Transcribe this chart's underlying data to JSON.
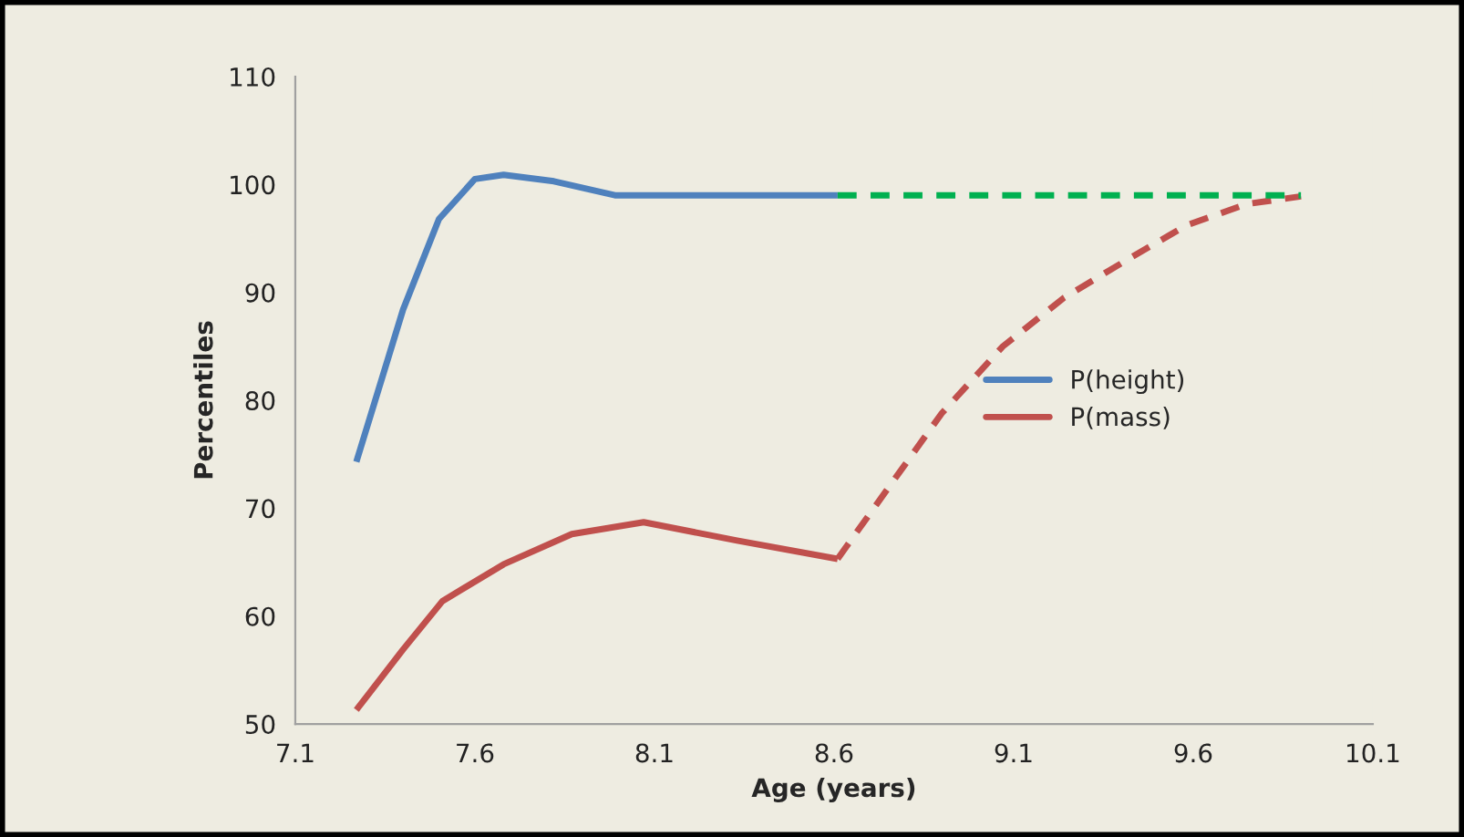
{
  "chart_data": {
    "type": "line",
    "xlabel": "Age (years)",
    "ylabel": "Percentiles",
    "xlim": [
      7.1,
      10.1
    ],
    "xticks": [
      7.1,
      7.6,
      8.1,
      8.6,
      9.1,
      9.6,
      10.1
    ],
    "ylim": [
      50,
      110
    ],
    "yticks": [
      50,
      60,
      70,
      80,
      90,
      100,
      110
    ],
    "grid": false,
    "legend": "right",
    "marker": "none",
    "series": [
      {
        "name": "P(height)",
        "color": "#4f81bd",
        "line_style": "solid",
        "x": [
          7.27,
          7.4,
          7.5,
          7.6,
          7.68,
          7.82,
          7.99,
          8.61
        ],
        "values": [
          74.3,
          88.4,
          96.8,
          100.5,
          100.9,
          100.3,
          99.0,
          99.0
        ]
      },
      {
        "name": "P(mass)",
        "color": "#c0504d",
        "line_style": "solid",
        "x": [
          7.27,
          7.4,
          7.51,
          7.68,
          7.87,
          8.07,
          8.33,
          8.61
        ],
        "values": [
          51.3,
          56.9,
          61.4,
          64.8,
          67.6,
          68.7,
          67.0,
          65.3
        ]
      },
      {
        "color": "#c0504d",
        "line_style": "dashed",
        "x": [
          8.61,
          8.73,
          8.9,
          9.07,
          9.24,
          9.41,
          9.58,
          9.75,
          9.9
        ],
        "values": [
          65.3,
          70.9,
          78.8,
          85.0,
          89.5,
          92.9,
          96.2,
          98.2,
          98.9
        ]
      },
      {
        "color": "#00b050",
        "line_style": "dashed",
        "x": [
          8.61,
          9.9
        ],
        "values": [
          99.0,
          99.0
        ]
      }
    ]
  }
}
